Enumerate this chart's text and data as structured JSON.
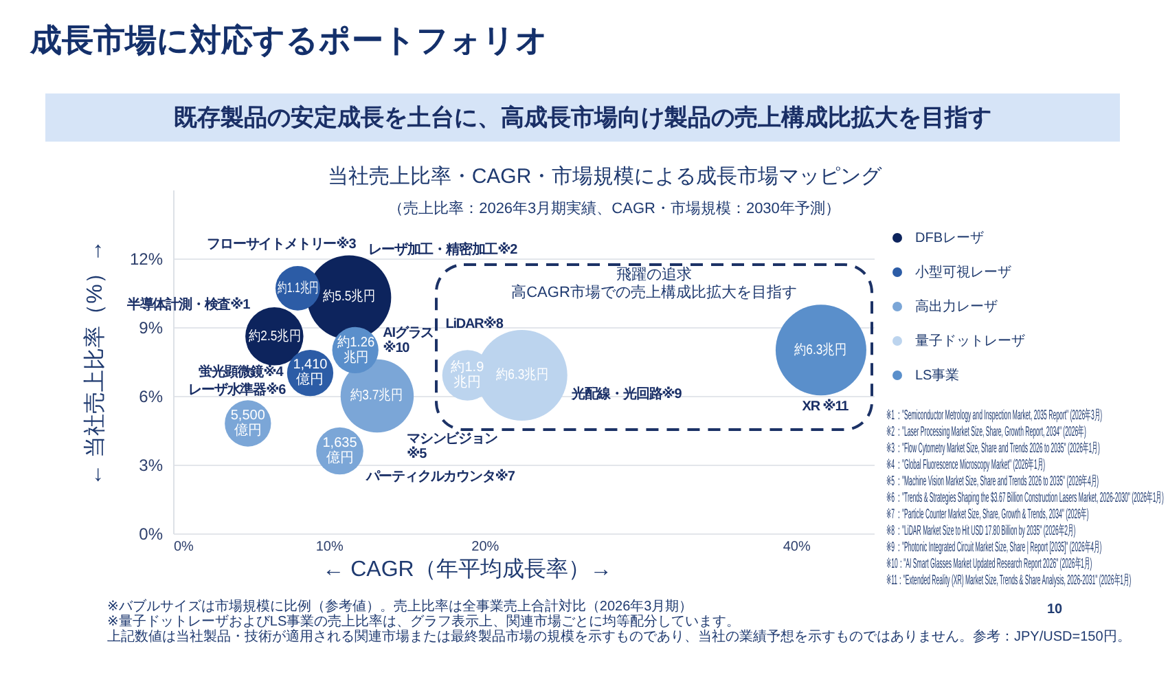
{
  "chart_data": {
    "type": "bubble",
    "title": "当社売上比率・CAGR・市場規模による成長市場マッピング",
    "subtitle": "（売上比率：2026年3月期実績、CAGR・市場規模：2030年予測）",
    "xlabel": "← CAGR（年平均成長率）→",
    "ylabel": "← 当社売上比率（%）→",
    "xlim": [
      0,
      45
    ],
    "xticks": [
      {
        "value": 0,
        "label": "0%"
      },
      {
        "value": 10,
        "label": "10%"
      },
      {
        "value": 20,
        "label": "20%"
      },
      {
        "value": 40,
        "label": "40%"
      }
    ],
    "ylim": [
      0,
      15
    ],
    "yticks": [
      {
        "value": 0,
        "label": "0%"
      },
      {
        "value": 3,
        "label": "3%"
      },
      {
        "value": 6,
        "label": "6%"
      },
      {
        "value": 9,
        "label": "9%"
      },
      {
        "value": 12,
        "label": "12%"
      }
    ],
    "grid": "y",
    "legend": "right",
    "series": [
      {
        "name": "DFBレーザ",
        "color": "#0d245d",
        "x": [
          6.5,
          11.3
        ],
        "values": [
          8.6,
          10.3
        ],
        "sizes": [
          0.41,
          0.86
        ]
      },
      {
        "name": "小型可視レーザ",
        "color": "#2c5ca6",
        "x": [
          8.0,
          8.8
        ],
        "values": [
          10.7,
          7.0
        ],
        "sizes": [
          0.24,
          0.26
        ]
      },
      {
        "name": "高出力レーザ",
        "color": "#7ba6d7",
        "x": [
          13.1,
          4.8,
          10.7
        ],
        "values": [
          6.0,
          4.8,
          3.6
        ],
        "sizes": [
          0.65,
          0.26,
          0.27
        ]
      },
      {
        "name": "量子ドットレーザ",
        "color": "#bcd4ee",
        "x": [
          22.4,
          18.9
        ],
        "values": [
          6.9,
          6.9
        ],
        "sizes": [
          1,
          0.31
        ]
      },
      {
        "name": "LS事業",
        "color": "#5a8fcb",
        "x": [
          11.7,
          41.6
        ],
        "values": [
          8.0,
          8.0
        ],
        "sizes": [
          0.26,
          1
        ]
      }
    ],
    "annotations": [
      "成長市場に対応するポートフォリオ",
      "既存製品の安定成長を土台に、高成長市場向け製品の売上構成比拡大を目指す",
      "飛躍の追求",
      "高CAGR市場での売上構成比拡大を目指す",
      "半導体計測・検査※1",
      "レーザ加工・精密加工※2",
      "フローサイトメトリー※3",
      "蛍光顕微鏡※4",
      "マシンビジョン\n※5",
      "レーザ水準器※6",
      "パーティクルカウンタ※7",
      "光配線・光回路※9",
      "LiDAR※8",
      "AIグラス\n※10",
      "XR ※11",
      {
        "text": "約2.5兆円",
        "x": 6.5,
        "y": 8.6
      },
      {
        "text": "約5.5兆円",
        "x": 11.3,
        "y": 10.3
      },
      {
        "text": "約1.1兆円",
        "x": 8.0,
        "y": 10.7
      },
      {
        "text": "1,410\n億円",
        "x": 8.8,
        "y": 7.0
      },
      {
        "text": "約3.7兆円",
        "x": 13.1,
        "y": 6.0
      },
      {
        "text": "5,500\n億円",
        "x": 4.8,
        "y": 4.8
      },
      {
        "text": "1,635\n億円",
        "x": 10.7,
        "y": 3.6
      },
      {
        "text": "約6.3兆円",
        "x": 22.4,
        "y": 6.9
      },
      {
        "text": "約1.9\n兆円",
        "x": 18.9,
        "y": 6.9
      },
      {
        "text": "約1.26\n兆円",
        "x": 11.7,
        "y": 8.0
      },
      {
        "text": "約6.3兆円",
        "x": 41.6,
        "y": 8.0
      },
      "※バブルサイズは市場規模に比例（参考値）。売上比率は全事業売上合計対比（2026年3月期）",
      "※量子ドットレーザおよびLS事業の売上比率は、グラフ表示上、関連市場ごとに均等配分しています。",
      "上記数値は当社製品・技術が適用される関連市場または最終製品市場の規模を示すものであり、当社の業績予想を示すものではありません。参考：JPY/USD=150円。",
      "※1 ：\"Semiconductor Metrology and Inspection Market, 2035 Report\" (2026年3月)",
      "※2 ：\"Laser Processing Market Size, Share, Growth Report, 2034\" (2026年)",
      "※3 ：\"Flow Cytometry Market Size, Share and Trends 2026 to 2035\" (2026年1月)",
      "※4 ：\"Global Fluorescence Microscopy Market\" (2026年1月)",
      "※5 ：\"Machine Vision Market Size, Share and Trends 2026 to 2035\" (2026年4月)",
      "※6 ：\"Trends & Strategies Shaping the $3.67 Billion Construction Lasers Market, 2026-2030\" (2026年1月)",
      "※7 ：\"Particle Counter Market Size, Share, Growth & Trends, 2034\" (2026年)",
      "※8 ：\"LiDAR Market Size to Hit USD 17.80 Billion by 2035\" (2026年2月)",
      "※9 ：\"Photonic Integrated Circuit Market Size, Share | Report [2035]\" (2026年4月)",
      "※10：\"AI Smart Glasses Market Updated Research Report 2026\" (2026年1月)",
      "※11：\"Extended Reality (XR) Market Size, Trends & Share Analysis, 2026-2031\" (2026年1月)",
      "10"
    ]
  }
}
